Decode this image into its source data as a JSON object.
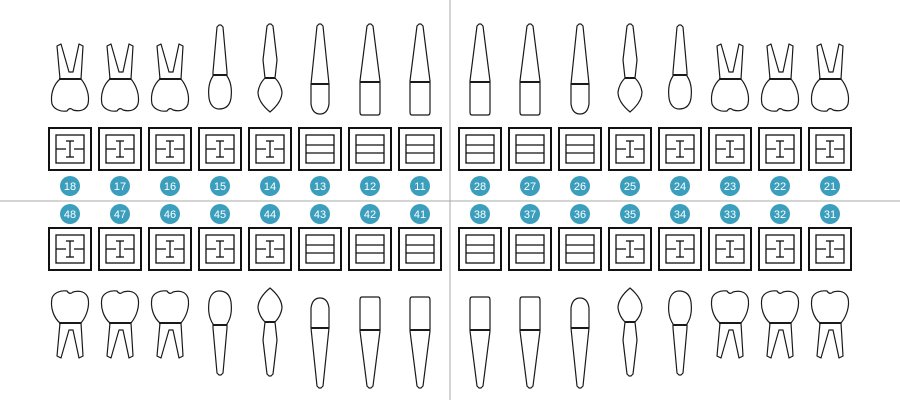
{
  "colors": {
    "badge": "#3a9ebc",
    "badge_text": "#ffffff",
    "outline": "#1a1a1a",
    "divider": "#a8a8a8"
  },
  "upper_row": [
    {
      "number": "18",
      "type": "molar",
      "mark": "I"
    },
    {
      "number": "17",
      "type": "molar",
      "mark": "I"
    },
    {
      "number": "16",
      "type": "molar",
      "mark": "I"
    },
    {
      "number": "15",
      "type": "premolar1",
      "mark": "I"
    },
    {
      "number": "14",
      "type": "premolar2",
      "mark": "I"
    },
    {
      "number": "13",
      "type": "canine",
      "mark": "="
    },
    {
      "number": "12",
      "type": "incisor",
      "mark": "="
    },
    {
      "number": "11",
      "type": "incisor",
      "mark": "="
    },
    {
      "number": "28",
      "type": "incisor",
      "mark": "="
    },
    {
      "number": "27",
      "type": "incisor",
      "mark": "="
    },
    {
      "number": "26",
      "type": "canine",
      "mark": "="
    },
    {
      "number": "25",
      "type": "premolar2",
      "mark": "I"
    },
    {
      "number": "24",
      "type": "premolar1",
      "mark": "I"
    },
    {
      "number": "23",
      "type": "molar",
      "mark": "I"
    },
    {
      "number": "22",
      "type": "molar",
      "mark": "I"
    },
    {
      "number": "21",
      "type": "molar",
      "mark": "I"
    }
  ],
  "lower_row": [
    {
      "number": "48",
      "type": "molar",
      "mark": "I"
    },
    {
      "number": "47",
      "type": "molar",
      "mark": "I"
    },
    {
      "number": "46",
      "type": "molar",
      "mark": "I"
    },
    {
      "number": "45",
      "type": "premolar1",
      "mark": "I"
    },
    {
      "number": "44",
      "type": "premolar2",
      "mark": "I"
    },
    {
      "number": "43",
      "type": "canine",
      "mark": "="
    },
    {
      "number": "42",
      "type": "incisor",
      "mark": "="
    },
    {
      "number": "41",
      "type": "incisor",
      "mark": "="
    },
    {
      "number": "38",
      "type": "incisor",
      "mark": "="
    },
    {
      "number": "37",
      "type": "incisor",
      "mark": "="
    },
    {
      "number": "36",
      "type": "canine",
      "mark": "="
    },
    {
      "number": "35",
      "type": "premolar2",
      "mark": "I"
    },
    {
      "number": "34",
      "type": "premolar1",
      "mark": "I"
    },
    {
      "number": "33",
      "type": "molar",
      "mark": "I"
    },
    {
      "number": "32",
      "type": "molar",
      "mark": "I"
    },
    {
      "number": "31",
      "type": "molar",
      "mark": "I"
    }
  ]
}
